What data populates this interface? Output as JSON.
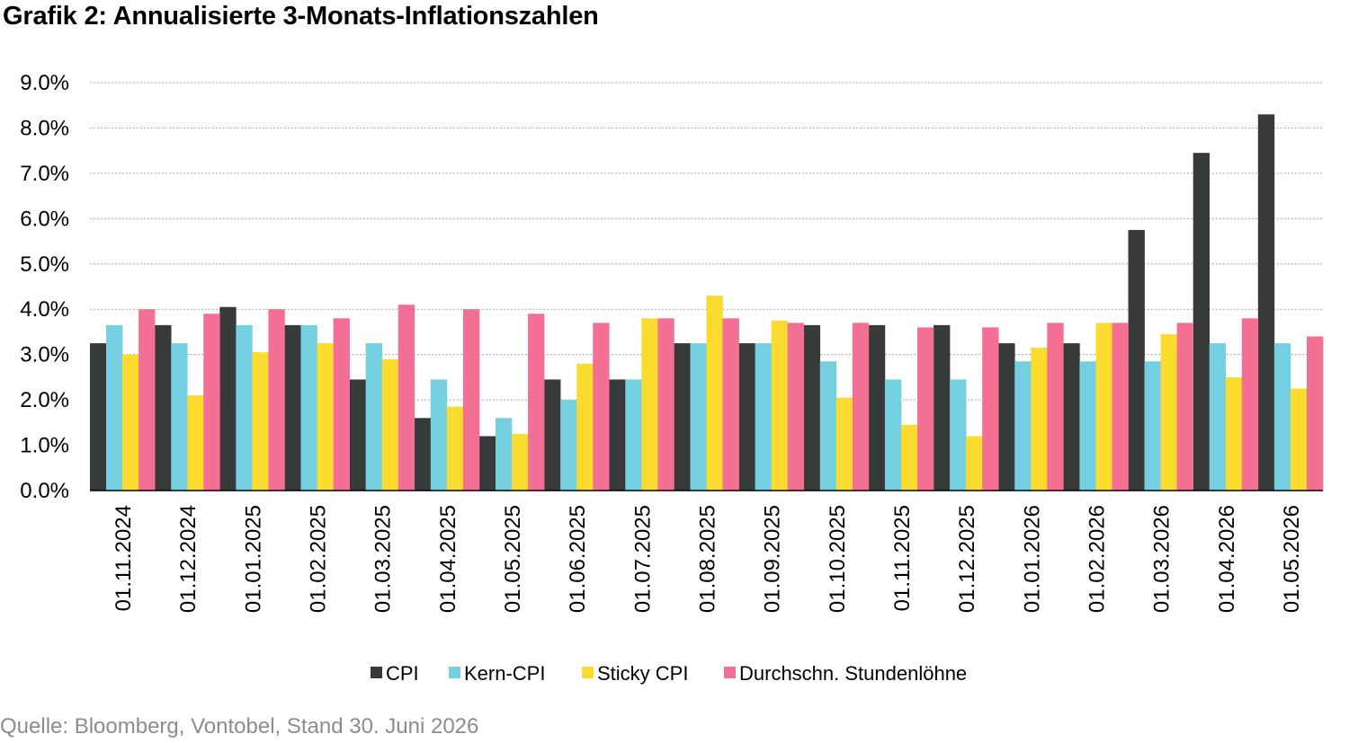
{
  "chart_data": {
    "type": "bar",
    "title": "Grafik 2: Annualisierte 3-Monats-Inflationszahlen",
    "source": "Quelle: Bloomberg, Vontobel, Stand 30. Juni 2026",
    "xlabel": "",
    "ylabel": "",
    "ylim": [
      0,
      9
    ],
    "yticks": [
      "0.0%",
      "1.0%",
      "2.0%",
      "3.0%",
      "4.0%",
      "5.0%",
      "6.0%",
      "7.0%",
      "8.0%",
      "9.0%"
    ],
    "grid": "horizontal-dotted",
    "legend_position": "bottom",
    "categories": [
      "01.11.2024",
      "01.12.2024",
      "01.01.2025",
      "01.02.2025",
      "01.03.2025",
      "01.04.2025",
      "01.05.2025",
      "01.06.2025",
      "01.07.2025",
      "01.08.2025",
      "01.09.2025",
      "01.10.2025",
      "01.11.2025",
      "01.12.2025",
      "01.01.2026",
      "01.02.2026",
      "01.03.2026",
      "01.04.2026",
      "01.05.2026"
    ],
    "series": [
      {
        "name": "CPI",
        "color": "#363a38",
        "values": [
          3.25,
          3.65,
          4.05,
          3.65,
          2.45,
          1.6,
          1.2,
          2.45,
          2.45,
          3.25,
          3.25,
          3.65,
          3.65,
          3.65,
          3.25,
          3.25,
          5.75,
          7.45,
          8.3
        ]
      },
      {
        "name": "Kern-CPI",
        "color": "#74cfe0",
        "values": [
          3.65,
          3.25,
          3.65,
          3.65,
          3.25,
          2.45,
          1.6,
          2.0,
          2.45,
          3.25,
          3.25,
          2.85,
          2.45,
          2.45,
          2.85,
          2.85,
          2.85,
          3.25,
          3.25
        ]
      },
      {
        "name": "Sticky CPI",
        "color": "#fbdb2e",
        "values": [
          3.0,
          2.1,
          3.05,
          3.25,
          2.9,
          1.85,
          1.25,
          2.8,
          3.8,
          4.3,
          3.75,
          2.05,
          1.45,
          1.2,
          3.15,
          3.7,
          3.45,
          2.5,
          2.25
        ]
      },
      {
        "name": "Durchschn. Stundenlöhne",
        "color": "#f46f94",
        "values": [
          4.0,
          3.9,
          4.0,
          3.8,
          4.1,
          4.0,
          3.9,
          3.7,
          3.8,
          3.8,
          3.7,
          3.7,
          3.6,
          3.6,
          3.7,
          3.7,
          3.7,
          3.8,
          3.4
        ]
      }
    ]
  }
}
